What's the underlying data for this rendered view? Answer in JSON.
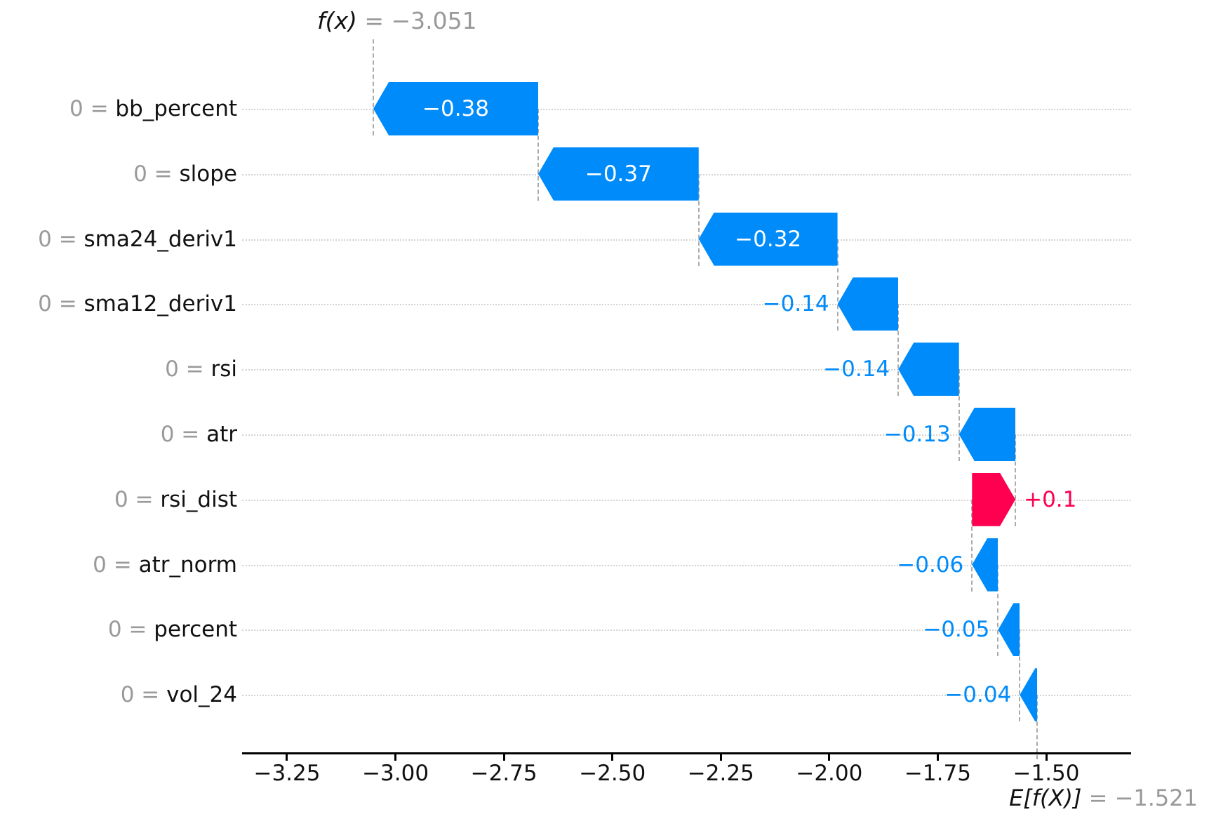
{
  "header": {
    "fx_math": "f(x)",
    "fx_eq": " = −3.051"
  },
  "expected_label": {
    "e_math": "E[f(X)]",
    "e_eq": " = −1.521"
  },
  "chart_data": {
    "type": "bar",
    "subtype": "shap-waterfall",
    "title": "",
    "xlabel": "",
    "ylabel": "",
    "base_value": -1.521,
    "fx_value": -3.051,
    "xlim": [
      -3.35,
      -1.3
    ],
    "grid": "horizontal-dotted",
    "features": [
      {
        "name": "bb_percent",
        "data_value": "0",
        "shap": -0.38,
        "display": "−0.38"
      },
      {
        "name": "slope",
        "data_value": "0",
        "shap": -0.37,
        "display": "−0.37"
      },
      {
        "name": "sma24_deriv1",
        "data_value": "0",
        "shap": -0.32,
        "display": "−0.32"
      },
      {
        "name": "sma12_deriv1",
        "data_value": "0",
        "shap": -0.14,
        "display": "−0.14"
      },
      {
        "name": "rsi",
        "data_value": "0",
        "shap": -0.14,
        "display": "−0.14"
      },
      {
        "name": "atr",
        "data_value": "0",
        "shap": -0.13,
        "display": "−0.13"
      },
      {
        "name": "rsi_dist",
        "data_value": "0",
        "shap": 0.1,
        "display": "+0.1"
      },
      {
        "name": "atr_norm",
        "data_value": "0",
        "shap": -0.06,
        "display": "−0.06"
      },
      {
        "name": "percent",
        "data_value": "0",
        "shap": -0.05,
        "display": "−0.05"
      },
      {
        "name": "vol_24",
        "data_value": "0",
        "shap": -0.04,
        "display": "−0.04"
      }
    ],
    "x_ticks": [
      -3.25,
      -3.0,
      -2.75,
      -2.5,
      -2.25,
      -2.0,
      -1.75,
      -1.5
    ],
    "x_tick_labels": [
      "−3.25",
      "−3.00",
      "−2.75",
      "−2.50",
      "−2.25",
      "−2.00",
      "−1.75",
      "−1.50"
    ],
    "colors": {
      "negative": "#008bfb",
      "positive": "#ff0051",
      "grid": "#d2d2d2",
      "connector": "#ababab",
      "muted_text": "#9a9a9a"
    }
  }
}
